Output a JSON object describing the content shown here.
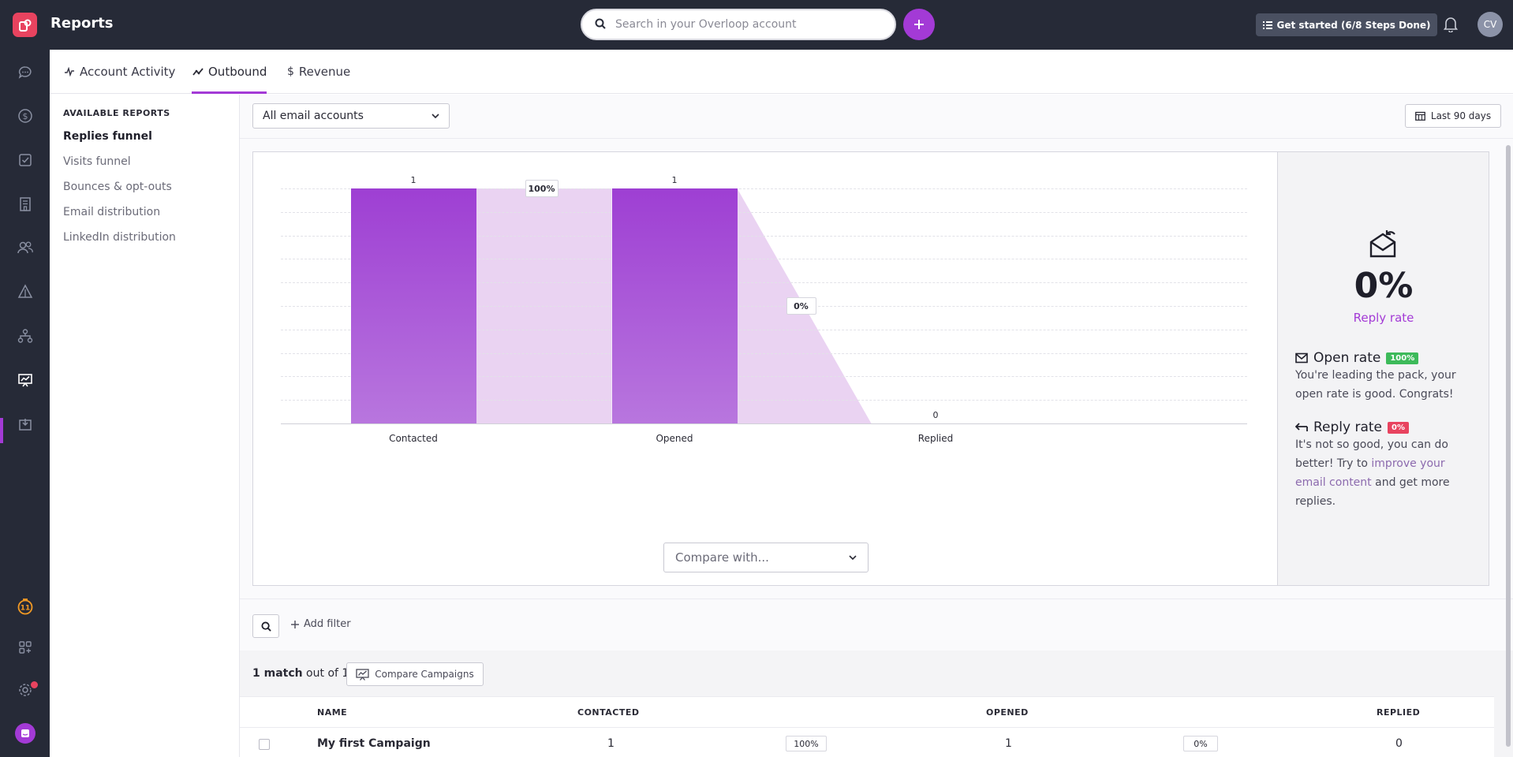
{
  "header": {
    "title": "Reports",
    "search_placeholder": "Search in your Overloop account",
    "get_started": "Get started (6/8 Steps Done)",
    "avatar_initials": "CV"
  },
  "tabs": [
    {
      "label": "Account Activity",
      "icon": "activity-icon"
    },
    {
      "label": "Outbound",
      "icon": "trend-icon",
      "active": true
    },
    {
      "label": "Revenue",
      "icon": "dollar-icon"
    }
  ],
  "reports_sidebar": {
    "heading": "AVAILABLE REPORTS",
    "items": [
      "Replies funnel",
      "Visits funnel",
      "Bounces & opt-outs",
      "Email distribution",
      "LinkedIn distribution"
    ],
    "active_index": 0
  },
  "filters": {
    "accounts_select": "All email accounts",
    "date_range": "Last 90 days",
    "compare_with": "Compare with..."
  },
  "chart_data": {
    "type": "bar",
    "categories": [
      "Contacted",
      "Opened",
      "Replied"
    ],
    "values": [
      1,
      1,
      0
    ],
    "conversion_labels": [
      "100%",
      "0%"
    ],
    "ylim": [
      0,
      1
    ],
    "grid": true
  },
  "summary": {
    "reply_rate_value": "0%",
    "reply_rate_label": "Reply rate",
    "open_title": "Open rate",
    "open_badge": "100%",
    "open_text": "You're leading the pack, your open rate is good. Congrats!",
    "reply_title": "Reply rate",
    "reply_badge": "0%",
    "reply_text_1": "It's not so good, you can do better! Try to ",
    "reply_link": "improve your email content",
    "reply_text_2": " and get more replies."
  },
  "table": {
    "add_filter": "Add filter",
    "match_count": "1 match",
    "match_suffix": " out of 1",
    "compare_campaigns": "Compare Campaigns",
    "columns": [
      "NAME",
      "CONTACTED",
      "OPENED",
      "REPLIED"
    ],
    "rows": [
      {
        "name": "My first Campaign",
        "contacted": "1",
        "contacted_to_opened": "100%",
        "opened": "1",
        "opened_to_replied": "0%",
        "replied": "0"
      }
    ]
  },
  "colors": {
    "accent": "#a33ad6",
    "sidebar_bg": "#262a37",
    "open_badge": "#3dba5a",
    "reply_badge": "#e8435f"
  }
}
